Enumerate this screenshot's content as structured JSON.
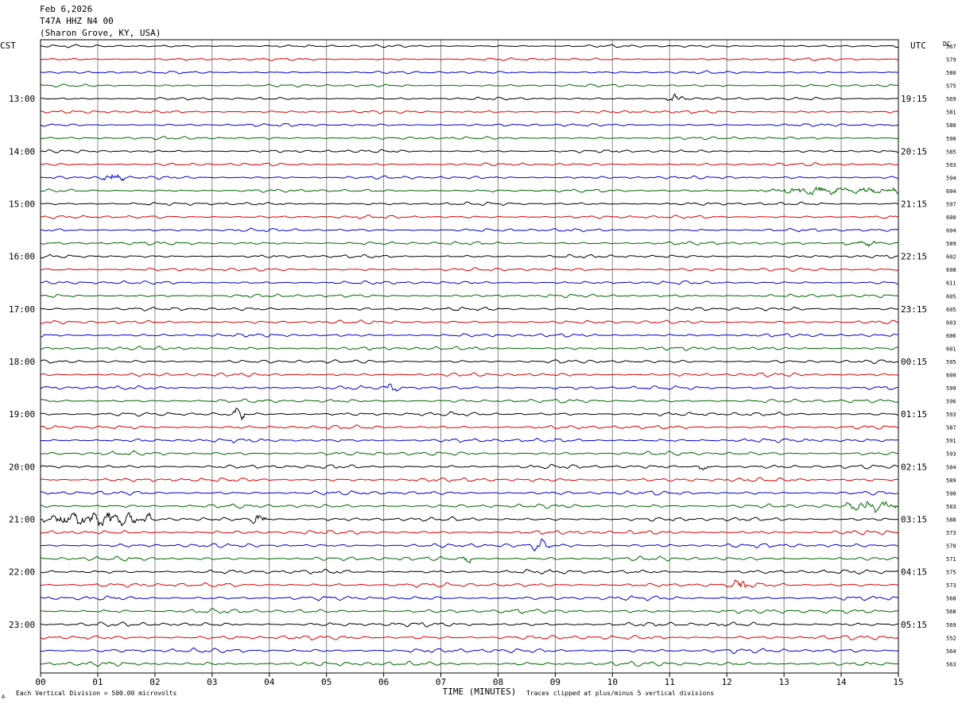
{
  "header": {
    "date": "Feb 6,2026",
    "station": "T47A HHZ N4 00",
    "location": "(Sharon Grove, KY, USA)"
  },
  "chart_data": {
    "type": "line",
    "title": "",
    "xlabel": "TIME (MINUTES)",
    "left_axis_title": "CST",
    "right_axis_title": "UTC",
    "dc_title": "DC",
    "xlim": [
      0,
      15
    ],
    "x_ticks": [
      "00",
      "01",
      "02",
      "03",
      "04",
      "05",
      "06",
      "07",
      "08",
      "09",
      "10",
      "11",
      "12",
      "13",
      "14",
      "15"
    ],
    "left_hour_labels": [
      "13:00",
      "14:00",
      "15:00",
      "16:00",
      "17:00",
      "18:00",
      "19:00",
      "20:00",
      "21:00",
      "22:00",
      "23:00"
    ],
    "right_hour_labels": [
      "19:15",
      "20:15",
      "21:15",
      "22:15",
      "23:15",
      "00:15",
      "01:15",
      "02:15",
      "03:15",
      "04:15",
      "05:15"
    ],
    "hour_label_first_row": 4,
    "rows_per_hour": 4,
    "trace_colors": [
      "#000000",
      "#dd0000",
      "#0000cc",
      "#006600"
    ],
    "dc_offsets": [
      567,
      579,
      580,
      575,
      569,
      581,
      580,
      590,
      585,
      593,
      594,
      604,
      597,
      600,
      604,
      589,
      602,
      608,
      611,
      605,
      605,
      603,
      606,
      601,
      595,
      600,
      599,
      596,
      593,
      587,
      591,
      593,
      584,
      589,
      590,
      583,
      588,
      573,
      570,
      571,
      575,
      573,
      568,
      568,
      569,
      552,
      564,
      563
    ],
    "events": [
      {
        "row": 4,
        "start": 10.95,
        "end": 11.3,
        "amp": 2.2
      },
      {
        "row": 10,
        "start": 1.0,
        "end": 1.5,
        "amp": 1.8
      },
      {
        "row": 11,
        "start": 12.5,
        "end": 15.0,
        "amp": 1.4
      },
      {
        "row": 15,
        "start": 14.0,
        "end": 14.7,
        "amp": 1.3
      },
      {
        "row": 26,
        "start": 6.0,
        "end": 6.3,
        "amp": 1.6
      },
      {
        "row": 28,
        "start": 3.35,
        "end": 3.6,
        "amp": 1.8
      },
      {
        "row": 32,
        "start": 11.5,
        "end": 11.7,
        "amp": 1.8
      },
      {
        "row": 35,
        "start": 14.0,
        "end": 15.0,
        "amp": 1.6
      },
      {
        "row": 36,
        "start": 0.0,
        "end": 1.95,
        "amp": 2.6
      },
      {
        "row": 36,
        "start": 3.65,
        "end": 3.95,
        "amp": 2.0
      },
      {
        "row": 38,
        "start": 8.6,
        "end": 8.9,
        "amp": 1.5
      },
      {
        "row": 39,
        "start": 7.35,
        "end": 7.6,
        "amp": 1.7
      },
      {
        "row": 41,
        "start": 12.05,
        "end": 12.35,
        "amp": 1.5
      }
    ],
    "footer_left": "Each Vertical Division =  500.00 microvolts",
    "footer_right": "Traces clipped at plus/minus 5 vertical divisions",
    "corner_mark": "A"
  }
}
